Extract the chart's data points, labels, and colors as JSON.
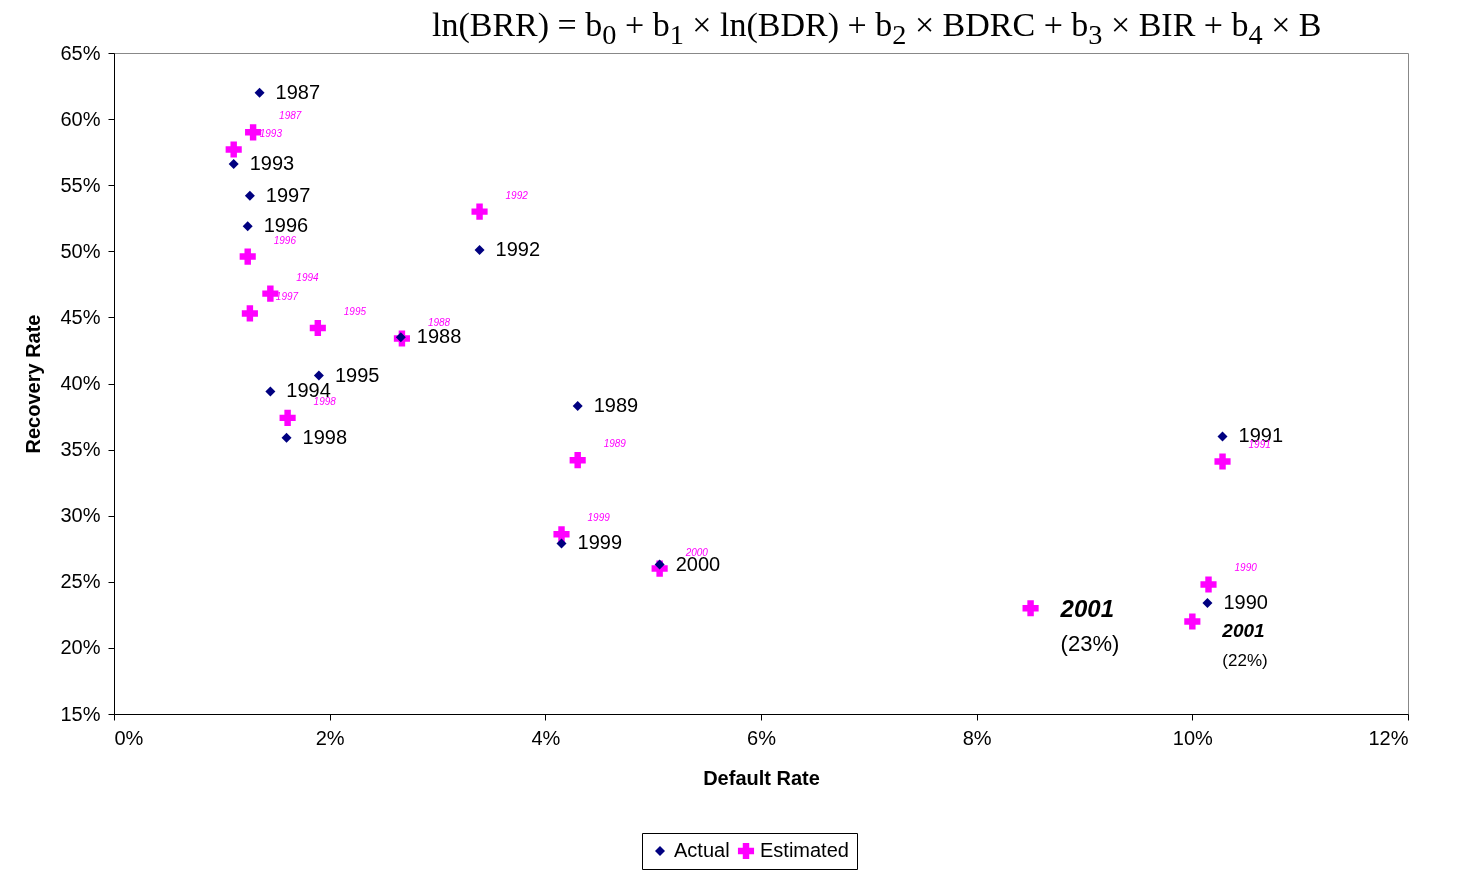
{
  "chart_data": {
    "type": "scatter",
    "title": "ln(BRR) = b$_{0}$ + b$_{1}$ × ln(BDR) + b$_{2}$ × BDRC + b$_{3}$ × BIR + b$_{4}$ × B",
    "xlabel": "Default Rate",
    "ylabel": "Recovery Rate",
    "xlim": [
      0,
      12
    ],
    "xticks": [
      {
        "value": 0,
        "label": "0%"
      },
      {
        "value": 2,
        "label": "2%"
      },
      {
        "value": 4,
        "label": "4%"
      },
      {
        "value": 6,
        "label": "6%"
      },
      {
        "value": 8,
        "label": "8%"
      },
      {
        "value": 10,
        "label": "10%"
      },
      {
        "value": 12,
        "label": "12%"
      }
    ],
    "ylim": [
      15,
      65
    ],
    "yticks": [
      {
        "value": 15,
        "label": "15%"
      },
      {
        "value": 20,
        "label": "20%"
      },
      {
        "value": 25,
        "label": "25%"
      },
      {
        "value": 30,
        "label": "30%"
      },
      {
        "value": 35,
        "label": "35%"
      },
      {
        "value": 40,
        "label": "40%"
      },
      {
        "value": 45,
        "label": "45%"
      },
      {
        "value": 50,
        "label": "50%"
      },
      {
        "value": 55,
        "label": "55%"
      },
      {
        "value": 60,
        "label": "60%"
      },
      {
        "value": 65,
        "label": "65%"
      }
    ],
    "grid": false,
    "legend": "bottom",
    "series": [
      {
        "name": "Actual",
        "color": "#000080",
        "marker": "diamond",
        "x": [
          1.35,
          2.66,
          4.3,
          10.14,
          10.28,
          3.39,
          1.11,
          1.45,
          1.9,
          1.24,
          1.26,
          1.6,
          4.15,
          5.06
        ],
        "values": [
          62,
          43.5,
          38.3,
          23.4,
          36,
          50.1,
          56.6,
          39.4,
          40.6,
          51.9,
          54.2,
          35.9,
          27.9,
          26.3
        ]
      },
      {
        "name": "Estimated",
        "color": "#ff00ff",
        "marker": "cross",
        "x": [
          1.29,
          2.67,
          4.3,
          10.15,
          10.28,
          3.39,
          1.11,
          1.45,
          1.89,
          1.24,
          1.26,
          1.61,
          4.15,
          5.06,
          8.5,
          10
        ],
        "values": [
          59,
          43.4,
          34.2,
          24.8,
          34.1,
          53,
          57.7,
          46.8,
          44.2,
          49.6,
          45.3,
          37.4,
          28.6,
          26,
          23,
          22
        ]
      }
    ],
    "annotations": [
      {
        "text": "1987",
        "x": 1.35,
        "y": 62
      },
      {
        "text": "1988",
        "x": 2.66,
        "y": 43.5
      },
      {
        "text": "1989",
        "x": 4.3,
        "y": 38.3
      },
      {
        "text": "1990",
        "x": 10.14,
        "y": 23.4
      },
      {
        "text": "1991",
        "x": 10.28,
        "y": 36
      },
      {
        "text": "1992",
        "x": 3.39,
        "y": 50.1
      },
      {
        "text": "1993",
        "x": 1.11,
        "y": 56.6
      },
      {
        "text": "1994",
        "x": 1.45,
        "y": 39.4
      },
      {
        "text": "1995",
        "x": 1.9,
        "y": 40.6
      },
      {
        "text": "1996",
        "x": 1.24,
        "y": 51.9
      },
      {
        "text": "1997",
        "x": 1.26,
        "y": 54.2
      },
      {
        "text": "1998",
        "x": 1.6,
        "y": 35.9
      },
      {
        "text": "1999",
        "x": 4.15,
        "y": 27.9
      },
      {
        "text": "2000",
        "x": 5.06,
        "y": 26.3
      },
      {
        "text": "1987",
        "x": 1.29,
        "y": 59
      },
      {
        "text": "1988",
        "x": 2.67,
        "y": 43.4
      },
      {
        "text": "1989",
        "x": 4.3,
        "y": 34.2
      },
      {
        "text": "1990",
        "x": 10.15,
        "y": 24.8
      },
      {
        "text": "1991",
        "x": 10.28,
        "y": 34.1
      },
      {
        "text": "1992",
        "x": 3.39,
        "y": 53
      },
      {
        "text": "1993",
        "x": 1.11,
        "y": 57.7
      },
      {
        "text": "1994",
        "x": 1.45,
        "y": 46.8
      },
      {
        "text": "1995",
        "x": 1.89,
        "y": 44.2
      },
      {
        "text": "1996",
        "x": 1.24,
        "y": 49.6
      },
      {
        "text": "1997",
        "x": 1.26,
        "y": 45.3
      },
      {
        "text": "1998",
        "x": 1.61,
        "y": 37.4
      },
      {
        "text": "1999",
        "x": 4.15,
        "y": 28.6
      },
      {
        "text": "2000",
        "x": 5.06,
        "y": 26
      },
      {
        "text": "2001",
        "x": 8.5,
        "y": 23
      },
      {
        "text": "(23%)",
        "x": 8.5,
        "y": 23
      },
      {
        "text": "2001",
        "x": 10,
        "y": 22
      },
      {
        "text": "(22%)",
        "x": 10,
        "y": 22
      }
    ]
  }
}
